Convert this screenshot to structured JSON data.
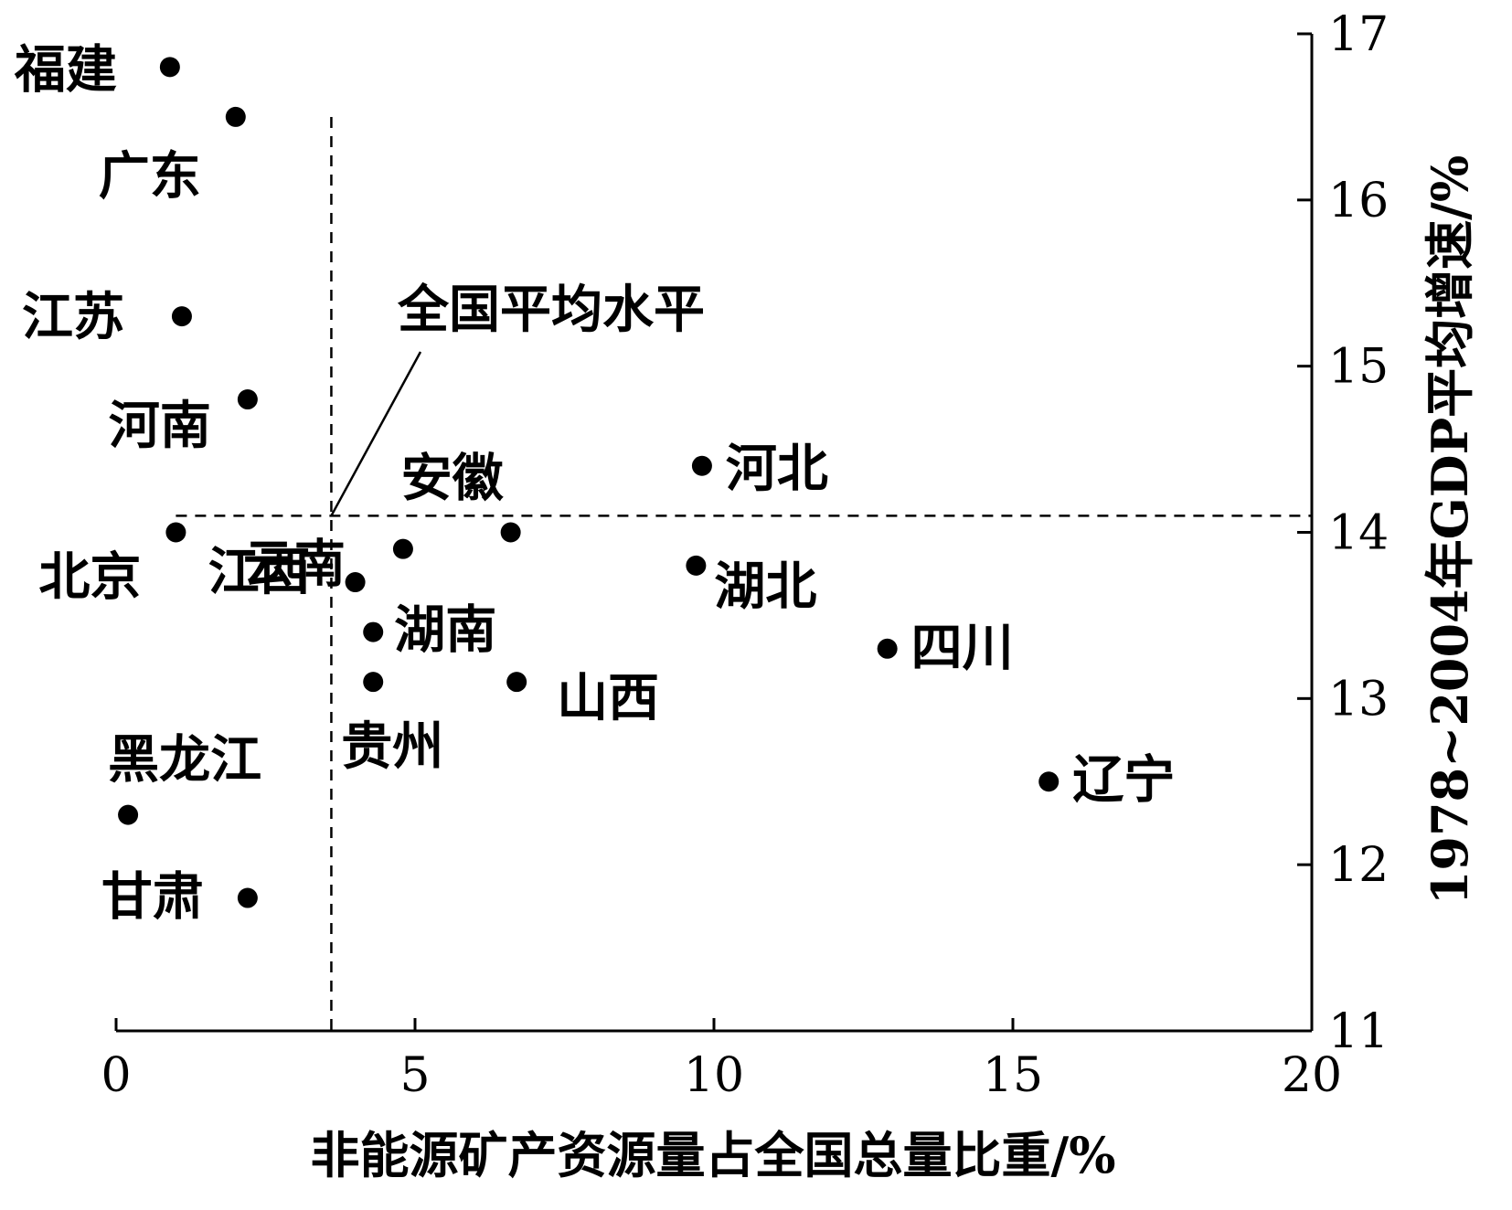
{
  "chart_data": {
    "type": "scatter",
    "xlabel": "非能源矿产资源量占全国总量比重/%",
    "ylabel": "1978~2004年GDP平均增速/%",
    "xlim": [
      0,
      20
    ],
    "ylim": [
      11,
      17
    ],
    "x_ticks": [
      "0",
      "5",
      "10",
      "15",
      "20"
    ],
    "y_ticks": [
      "11",
      "12",
      "13",
      "14",
      "15",
      "16",
      "17"
    ],
    "y_axis_side": "right",
    "grid": false,
    "points": [
      {
        "name": "福建",
        "x": 0.9,
        "y": 16.8
      },
      {
        "name": "广东",
        "x": 2.0,
        "y": 16.5
      },
      {
        "name": "江苏",
        "x": 1.1,
        "y": 15.3
      },
      {
        "name": "河南",
        "x": 2.2,
        "y": 14.8
      },
      {
        "name": "北京",
        "x": 1.0,
        "y": 14.0
      },
      {
        "name": "安徽",
        "x": 6.6,
        "y": 14.0
      },
      {
        "name": "河北",
        "x": 9.8,
        "y": 14.4
      },
      {
        "name": "江西",
        "x": 4.0,
        "y": 13.7
      },
      {
        "name": "湖南",
        "x": 4.3,
        "y": 13.4
      },
      {
        "name": "云南",
        "x": 4.8,
        "y": 13.9
      },
      {
        "name": "湖北",
        "x": 9.7,
        "y": 13.8
      },
      {
        "name": "四川",
        "x": 12.9,
        "y": 13.3
      },
      {
        "name": "贵州",
        "x": 4.3,
        "y": 13.1
      },
      {
        "name": "山西",
        "x": 6.7,
        "y": 13.1
      },
      {
        "name": "辽宁",
        "x": 15.6,
        "y": 12.5
      },
      {
        "name": "黑龙江",
        "x": 0.2,
        "y": 12.3
      },
      {
        "name": "甘肃",
        "x": 2.2,
        "y": 11.8
      }
    ],
    "reference_lines": {
      "label": "全国平均水平",
      "x": 3.6,
      "y": 14.1
    }
  }
}
